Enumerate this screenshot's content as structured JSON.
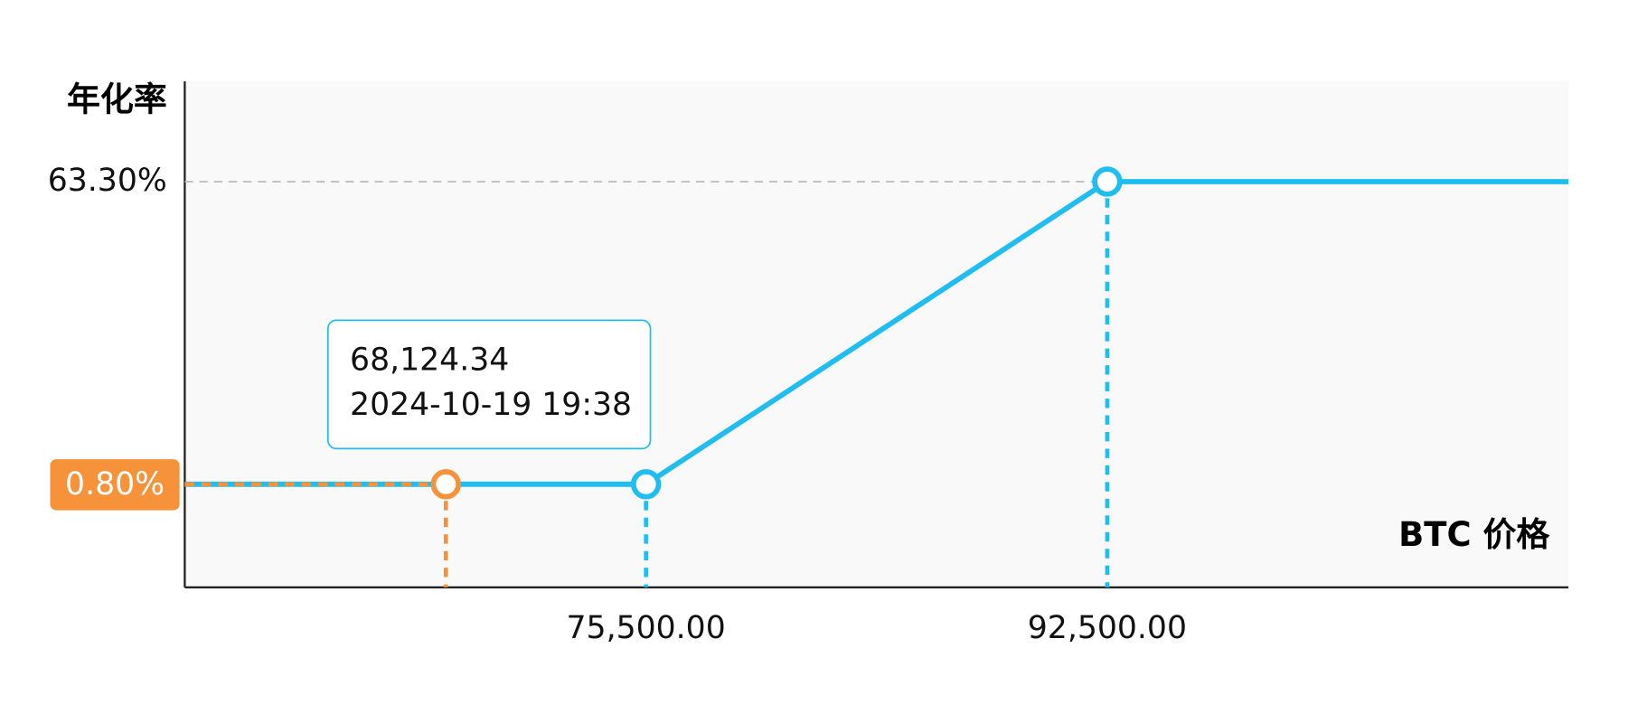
{
  "chart_data": {
    "type": "line",
    "y_label": "年化率",
    "x_label": "BTC 价格",
    "xlim": [
      58500,
      109500
    ],
    "ylim": [
      -20.5,
      84
    ],
    "xticks": [
      {
        "value": 75500,
        "label": "75,500.00"
      },
      {
        "value": 92500,
        "label": "92,500.00"
      }
    ],
    "yticks": [
      {
        "value": 63.3,
        "label": "63.30%"
      }
    ],
    "series": [
      {
        "color": "#1fbdf0",
        "x": [
          75500,
          92500
        ],
        "values": [
          0.8,
          63.3
        ]
      }
    ],
    "current": {
      "color": "#f5923a",
      "price": 68124.34,
      "price_label": "68,124.34",
      "time": "2024-10-19 19:38",
      "rate": 0.8,
      "rate_label": "0.80%"
    }
  }
}
